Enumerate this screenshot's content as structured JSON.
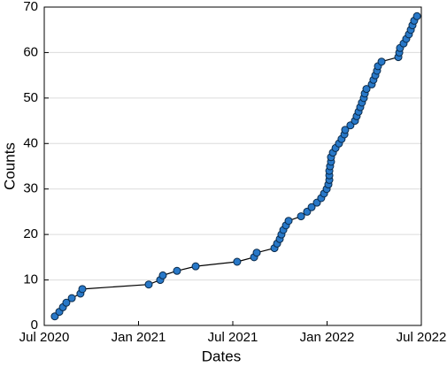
{
  "chart_data": {
    "type": "line",
    "xlabel": "Dates",
    "ylabel": "Counts",
    "x": [
      2020.556,
      2020.58,
      2020.599,
      2020.617,
      2020.646,
      2020.692,
      2020.702,
      2021.054,
      2021.115,
      2021.129,
      2021.204,
      2021.303,
      2021.523,
      2021.613,
      2021.627,
      2021.721,
      2021.735,
      2021.749,
      2021.758,
      2021.768,
      2021.782,
      2021.796,
      2021.862,
      2021.894,
      2021.918,
      2021.946,
      2021.969,
      2021.984,
      2021.998,
      2022.007,
      2022.012,
      2022.012,
      2022.012,
      2022.016,
      2022.021,
      2022.021,
      2022.031,
      2022.045,
      2022.063,
      2022.077,
      2022.092,
      2022.096,
      2022.124,
      2022.148,
      2022.157,
      2022.167,
      2022.176,
      2022.185,
      2022.195,
      2022.2,
      2022.209,
      2022.237,
      2022.246,
      2022.256,
      2022.265,
      2022.27,
      2022.289,
      2022.378,
      2022.383,
      2022.387,
      2022.406,
      2022.42,
      2022.434,
      2022.444,
      2022.453,
      2022.462,
      2022.477
    ],
    "series": [
      {
        "color": "#2878c8",
        "values": [
          2,
          3,
          4,
          5,
          6,
          7,
          8,
          9,
          10,
          11,
          12,
          13,
          14,
          15,
          16,
          17,
          18,
          19,
          20,
          21,
          22,
          23,
          24,
          25,
          26,
          27,
          28,
          29,
          30,
          31,
          32,
          33,
          34,
          35,
          36,
          37,
          38,
          39,
          40,
          41,
          42,
          43,
          44,
          45,
          46,
          47,
          48,
          49,
          50,
          51,
          52,
          53,
          54,
          55,
          56,
          57,
          58,
          59,
          60,
          61,
          62,
          63,
          64,
          65,
          66,
          67,
          68
        ]
      }
    ],
    "xlim": [
      2020.5,
      2022.5
    ],
    "xticks": [
      {
        "value": 2020.5,
        "label": "Jul 2020"
      },
      {
        "value": 2021.0,
        "label": "Jan 2021"
      },
      {
        "value": 2021.5,
        "label": "Jul 2021"
      },
      {
        "value": 2022.0,
        "label": "Jan 2022"
      },
      {
        "value": 2022.5,
        "label": "Jul 2022"
      }
    ],
    "ylim": [
      0,
      70
    ],
    "yticks": [
      0,
      10,
      20,
      30,
      40,
      50,
      60,
      70
    ],
    "grid": true
  }
}
